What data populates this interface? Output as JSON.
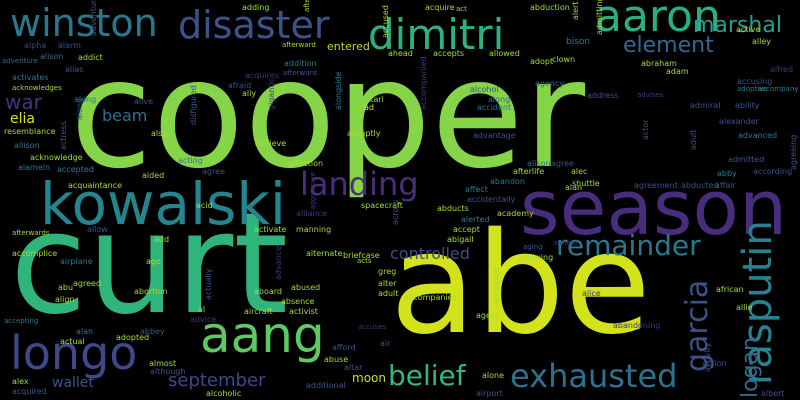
{
  "background": "#000000",
  "words": [
    {
      "id": "cooper",
      "text": "cooper",
      "color": "#86d549"
    },
    {
      "id": "curt",
      "text": "curt",
      "color": "#2fb47c"
    },
    {
      "id": "abe",
      "text": "abe",
      "color": "#d2e21b"
    },
    {
      "id": "season",
      "text": "season",
      "color": "#472d7b"
    },
    {
      "id": "kowalski",
      "text": "kowalski",
      "color": "#25858e"
    },
    {
      "id": "aaron",
      "text": "aaron",
      "color": "#2ab07f"
    },
    {
      "id": "dimitri",
      "text": "dimitri",
      "color": "#2db27d"
    },
    {
      "id": "disaster",
      "text": "disaster",
      "color": "#3b528b"
    },
    {
      "id": "winston",
      "text": "winston",
      "color": "#2a788e"
    },
    {
      "id": "longo",
      "text": "longo",
      "color": "#3e4989"
    },
    {
      "id": "aang",
      "text": "aang",
      "color": "#5ec962"
    },
    {
      "id": "landing",
      "text": "landing",
      "color": "#472f7d"
    },
    {
      "id": "exhausted",
      "text": "exhausted",
      "color": "#2c728e"
    },
    {
      "id": "remainder",
      "text": "remainder",
      "color": "#2a788e"
    },
    {
      "id": "belief",
      "text": "belief",
      "color": "#35b779"
    },
    {
      "id": "rasputin",
      "text": "rasputin",
      "color": "#26828e"
    },
    {
      "id": "garcia",
      "text": "garcia",
      "color": "#3b528b"
    },
    {
      "id": "marshal",
      "text": "marshal",
      "color": "#2a9d8f"
    },
    {
      "id": "element",
      "text": "element",
      "color": "#31688e"
    },
    {
      "id": "september",
      "text": "september",
      "color": "#3e4989"
    },
    {
      "id": "controlled",
      "text": "controlled",
      "color": "#3e4c8a"
    },
    {
      "id": "war",
      "text": "war",
      "color": "#46337e"
    },
    {
      "id": "beam",
      "text": "beam",
      "color": "#2c728e"
    },
    {
      "id": "elia",
      "text": "elia",
      "color": "#d8e219"
    },
    {
      "id": "wallet",
      "text": "wallet",
      "color": "#3b528b"
    },
    {
      "id": "moon",
      "text": "moon",
      "color": "#c8e020"
    },
    {
      "id": "logan",
      "text": "logan",
      "color": "#31688e"
    },
    {
      "id": "entered",
      "text": "entered",
      "color": "#b5de2b"
    },
    {
      "id": "bison",
      "text": "bison",
      "color": "#2a788e"
    },
    {
      "id": "alfred",
      "text": "alfred",
      "color": "#46327e"
    },
    {
      "id": "alison",
      "text": "alison",
      "color": "#31688e"
    },
    {
      "id": "alias",
      "text": "alias",
      "color": "#3b528b"
    },
    {
      "id": "alpha",
      "text": "alpha",
      "color": "#414487"
    },
    {
      "id": "alarm",
      "text": "alarm",
      "color": "#3b528b"
    },
    {
      "id": "adventure",
      "text": "adventure",
      "color": "#31688e"
    },
    {
      "id": "activates",
      "text": "activates",
      "color": "#2a788e"
    },
    {
      "id": "acknowledges",
      "text": "acknowledges",
      "color": "#a5db36"
    },
    {
      "id": "along",
      "text": "along",
      "color": "#2a788e"
    },
    {
      "id": "alive",
      "text": "alive",
      "color": "#3b528b"
    },
    {
      "id": "acquires",
      "text": "acquires",
      "color": "#46337e"
    },
    {
      "id": "afraid",
      "text": "afraid",
      "color": "#3b528b"
    },
    {
      "id": "ally",
      "text": "ally",
      "color": "#a5db36"
    },
    {
      "id": "addition",
      "text": "addition",
      "color": "#2a788e"
    },
    {
      "id": "ad",
      "text": "ad",
      "color": "#d2e21b"
    },
    {
      "id": "kari",
      "text": "kari",
      "color": "#a5db36"
    },
    {
      "id": "alcohol",
      "text": "alcohol",
      "color": "#3b528b"
    },
    {
      "id": "along2",
      "text": "along",
      "color": "#31688e"
    },
    {
      "id": "accident",
      "text": "accident",
      "color": "#2a788e"
    },
    {
      "id": "agency",
      "text": "agency",
      "color": "#2a788e"
    },
    {
      "id": "address",
      "text": "address",
      "color": "#3b528b"
    },
    {
      "id": "adam",
      "text": "adam",
      "color": "#a5db36"
    },
    {
      "id": "abraham",
      "text": "abraham",
      "color": "#a5db36"
    },
    {
      "id": "accusing",
      "text": "accusing",
      "color": "#3b528b"
    },
    {
      "id": "admiral",
      "text": "admiral",
      "color": "#3b528b"
    },
    {
      "id": "ability",
      "text": "ability",
      "color": "#3b528b"
    },
    {
      "id": "accompany",
      "text": "accompany",
      "color": "#2a788e"
    },
    {
      "id": "adoptive",
      "text": "adoptive",
      "color": "#2a788e"
    },
    {
      "id": "alexander",
      "text": "alexander",
      "color": "#3b528b"
    },
    {
      "id": "advanced",
      "text": "advanced",
      "color": "#2a788e"
    },
    {
      "id": "admitted",
      "text": "admitted",
      "color": "#3b528b"
    },
    {
      "id": "according",
      "text": "according",
      "color": "#3b528b"
    },
    {
      "id": "abby",
      "text": "abby",
      "color": "#2a788e"
    },
    {
      "id": "affair",
      "text": "affair",
      "color": "#3b528b"
    },
    {
      "id": "abducted",
      "text": "abducted",
      "color": "#3b528b"
    },
    {
      "id": "agreement",
      "text": "agreement",
      "color": "#3b528b"
    },
    {
      "id": "shuttle",
      "text": "shuttle",
      "color": "#a5db36"
    },
    {
      "id": "alan",
      "text": "alan",
      "color": "#a5db36"
    },
    {
      "id": "alec",
      "text": "alec",
      "color": "#a5db36"
    },
    {
      "id": "alison2",
      "text": "alison",
      "color": "#2a788e"
    },
    {
      "id": "afterlife",
      "text": "afterlife",
      "color": "#a5db36"
    },
    {
      "id": "abandon",
      "text": "abandon",
      "color": "#2a788e"
    },
    {
      "id": "advantage",
      "text": "advantage",
      "color": "#3b528b"
    },
    {
      "id": "affect",
      "text": "affect",
      "color": "#2a788e"
    },
    {
      "id": "accidentally",
      "text": "accidentally",
      "color": "#3b528b"
    },
    {
      "id": "academy",
      "text": "academy",
      "color": "#a5db36"
    },
    {
      "id": "accept",
      "text": "accept",
      "color": "#a5db36"
    },
    {
      "id": "alerted",
      "text": "alerted",
      "color": "#2a788e"
    },
    {
      "id": "abigail",
      "text": "abigail",
      "color": "#a5db36"
    },
    {
      "id": "abruptly",
      "text": "abruptly",
      "color": "#a5db36"
    },
    {
      "id": "affection",
      "text": "affection",
      "color": "#a5db36"
    },
    {
      "id": "achieve",
      "text": "achieve",
      "color": "#a5db36"
    },
    {
      "id": "acting",
      "text": "acting",
      "color": "#2a788e"
    },
    {
      "id": "also",
      "text": "also",
      "color": "#a5db36"
    },
    {
      "id": "agree",
      "text": "agree",
      "color": "#3b528b"
    },
    {
      "id": "aided",
      "text": "aided",
      "color": "#a5db36"
    },
    {
      "id": "acquaintance",
      "text": "acquaintance",
      "color": "#a5db36"
    },
    {
      "id": "accepted",
      "text": "accepted",
      "color": "#2a788e"
    },
    {
      "id": "acknowledge",
      "text": "acknowledge",
      "color": "#a5db36"
    },
    {
      "id": "alamein",
      "text": "alamein",
      "color": "#2a788e"
    },
    {
      "id": "allison",
      "text": "allison",
      "color": "#2a788e"
    },
    {
      "id": "resemblance",
      "text": "resemblance",
      "color": "#a5db36"
    },
    {
      "id": "afterwards",
      "text": "afterwards",
      "color": "#a5db36"
    },
    {
      "id": "allow",
      "text": "allow",
      "color": "#3b528b"
    },
    {
      "id": "add",
      "text": "add",
      "color": "#a5db36"
    },
    {
      "id": "acid",
      "text": "acid",
      "color": "#a5db36"
    },
    {
      "id": "activate",
      "text": "activate",
      "color": "#a5db36"
    },
    {
      "id": "manning",
      "text": "manning",
      "color": "#a5db36"
    },
    {
      "id": "alliance",
      "text": "alliance",
      "color": "#46337e"
    },
    {
      "id": "spacecraft",
      "text": "spacecraft",
      "color": "#a5db36"
    },
    {
      "id": "alternate",
      "text": "alternate",
      "color": "#a5db36"
    },
    {
      "id": "briefcase",
      "text": "briefcase",
      "color": "#a5db36"
    },
    {
      "id": "ago",
      "text": "ago",
      "color": "#a5db36"
    },
    {
      "id": "airplane",
      "text": "airplane",
      "color": "#2a788e"
    },
    {
      "id": "abu",
      "text": "abu",
      "color": "#a5db36"
    },
    {
      "id": "agreed",
      "text": "agreed",
      "color": "#a5db36"
    },
    {
      "id": "align",
      "text": "align",
      "color": "#a5db36"
    },
    {
      "id": "abortion",
      "text": "abortion",
      "color": "#a5db36"
    },
    {
      "id": "aboard",
      "text": "aboard",
      "color": "#a5db36"
    },
    {
      "id": "abused",
      "text": "abused",
      "color": "#a5db36"
    },
    {
      "id": "absence",
      "text": "absence",
      "color": "#a5db36"
    },
    {
      "id": "aircraft",
      "text": "aircraft",
      "color": "#a5db36"
    },
    {
      "id": "activist",
      "text": "activist",
      "color": "#a5db36"
    },
    {
      "id": "al",
      "text": "al",
      "color": "#a5db36"
    },
    {
      "id": "advice",
      "text": "advice",
      "color": "#46337e"
    },
    {
      "id": "abbey",
      "text": "abbey",
      "color": "#3b528b"
    },
    {
      "id": "adopted",
      "text": "adopted",
      "color": "#a5db36"
    },
    {
      "id": "actual",
      "text": "actual",
      "color": "#a5db36"
    },
    {
      "id": "alan2",
      "text": "alan",
      "color": "#2a788e"
    },
    {
      "id": "almost",
      "text": "almost",
      "color": "#a5db36"
    },
    {
      "id": "although",
      "text": "although",
      "color": "#3b528b"
    },
    {
      "id": "afford",
      "text": "afford",
      "color": "#3b528b"
    },
    {
      "id": "abuse",
      "text": "abuse",
      "color": "#a5db36"
    },
    {
      "id": "altar",
      "text": "altar",
      "color": "#3b528b"
    },
    {
      "id": "air",
      "text": "air",
      "color": "#3b528b"
    },
    {
      "id": "alcoholic",
      "text": "alcoholic",
      "color": "#a5db36"
    },
    {
      "id": "additional",
      "text": "additional",
      "color": "#3b528b"
    },
    {
      "id": "alex",
      "text": "alex",
      "color": "#a5db36"
    },
    {
      "id": "acquired",
      "text": "acquired",
      "color": "#3b528b"
    },
    {
      "id": "greg",
      "text": "greg",
      "color": "#a5db36"
    },
    {
      "id": "alter",
      "text": "alter",
      "color": "#a5db36"
    },
    {
      "id": "adult",
      "text": "adult",
      "color": "#a5db36"
    },
    {
      "id": "accompanies",
      "text": "accompanies",
      "color": "#a5db36"
    },
    {
      "id": "agent",
      "text": "agent",
      "color": "#a5db36"
    },
    {
      "id": "alone",
      "text": "alone",
      "color": "#a5db36"
    },
    {
      "id": "airport",
      "text": "airport",
      "color": "#3b528b"
    },
    {
      "id": "allowing",
      "text": "allowing",
      "color": "#a5db36"
    },
    {
      "id": "african",
      "text": "african",
      "color": "#a5db36"
    },
    {
      "id": "allie",
      "text": "allie",
      "color": "#a5db36"
    },
    {
      "id": "alice",
      "text": "alice",
      "color": "#46337e"
    },
    {
      "id": "abandoning",
      "text": "abandoning",
      "color": "#46337e"
    },
    {
      "id": "action",
      "text": "action",
      "color": "#3b528b"
    },
    {
      "id": "accuses",
      "text": "accuses",
      "color": "#46337e"
    },
    {
      "id": "acts",
      "text": "acts",
      "color": "#a5db36"
    },
    {
      "id": "accomplice",
      "text": "accomplice",
      "color": "#a5db36"
    },
    {
      "id": "accepting",
      "text": "accepting",
      "color": "#2a788e"
    },
    {
      "id": "adding",
      "text": "adding",
      "color": "#a5db36"
    },
    {
      "id": "afterward",
      "text": "afterward",
      "color": "#a5db36"
    },
    {
      "id": "ahead",
      "text": "ahead",
      "color": "#a5db36"
    },
    {
      "id": "accepts",
      "text": "accepts",
      "color": "#a5db36"
    },
    {
      "id": "allowed",
      "text": "allowed",
      "color": "#a5db36"
    },
    {
      "id": "acquire",
      "text": "acquire",
      "color": "#a5db36"
    },
    {
      "id": "act",
      "text": "act",
      "color": "#a5db36"
    },
    {
      "id": "abduction",
      "text": "abduction",
      "color": "#a5db36"
    },
    {
      "id": "adopt",
      "text": "adopt",
      "color": "#a5db36"
    },
    {
      "id": "clown",
      "text": "clown",
      "color": "#a5db36"
    },
    {
      "id": "active",
      "text": "active",
      "color": "#a5db36"
    },
    {
      "id": "alley",
      "text": "alley",
      "color": "#a5db36"
    },
    {
      "id": "adviser",
      "text": "advises",
      "color": "#46337e"
    },
    {
      "id": "agree2",
      "text": "agree",
      "color": "#3b528b"
    },
    {
      "id": "airfield",
      "text": "airfield",
      "color": "#46337e"
    },
    {
      "id": "aging",
      "text": "aging",
      "color": "#3b528b"
    },
    {
      "id": "addict",
      "text": "addict",
      "color": "#a5db36"
    },
    {
      "id": "afterward2",
      "text": "afterward",
      "color": "#3b528b"
    },
    {
      "id": "albert",
      "text": "albert",
      "color": "#3b528b"
    },
    {
      "id": "abducts",
      "text": "abducts",
      "color": "#a5db36"
    },
    {
      "id": "adventure-v",
      "text": "adventure",
      "color": "#3b528b",
      "vertical": true
    },
    {
      "id": "actress",
      "text": "actress",
      "color": "#3b528b",
      "vertical": true
    },
    {
      "id": "along-v",
      "text": "along",
      "color": "#3b528b",
      "vertical": true
    },
    {
      "id": "disfigured",
      "text": "disfigured",
      "color": "#3b528b",
      "vertical": true
    },
    {
      "id": "gigantic",
      "text": "gigantic",
      "color": "#46337e",
      "vertical": true
    },
    {
      "id": "accompanied",
      "text": "accompanied",
      "color": "#46337e",
      "vertical": true
    },
    {
      "id": "accused",
      "text": "accused",
      "color": "#a5db36",
      "vertical": true
    },
    {
      "id": "aftermath",
      "text": "aftermath",
      "color": "#a5db36",
      "vertical": true
    },
    {
      "id": "actor",
      "text": "actor",
      "color": "#3b528b",
      "vertical": true
    },
    {
      "id": "adult-v",
      "text": "adult",
      "color": "#3b528b",
      "vertical": true
    },
    {
      "id": "admitting",
      "text": "admitting",
      "color": "#a5db36",
      "vertical": true
    },
    {
      "id": "alert",
      "text": "alert",
      "color": "#a5db36",
      "vertical": true
    },
    {
      "id": "agreeing",
      "text": "agreeing",
      "color": "#3b528b",
      "vertical": true
    },
    {
      "id": "activated",
      "text": "activated",
      "color": "#a5db36",
      "vertical": true
    },
    {
      "id": "actually",
      "text": "actually",
      "color": "#3b528b",
      "vertical": true
    },
    {
      "id": "advance",
      "text": "advance",
      "color": "#46337e",
      "vertical": true
    },
    {
      "id": "across",
      "text": "across",
      "color": "#3b528b",
      "vertical": true
    },
    {
      "id": "activity",
      "text": "activity",
      "color": "#3b528b",
      "vertical": true
    },
    {
      "id": "aggressive",
      "text": "aggressive",
      "color": "#46337e",
      "vertical": true
    },
    {
      "id": "alongside",
      "text": "alongside",
      "color": "#2a788e",
      "vertical": true
    }
  ]
}
